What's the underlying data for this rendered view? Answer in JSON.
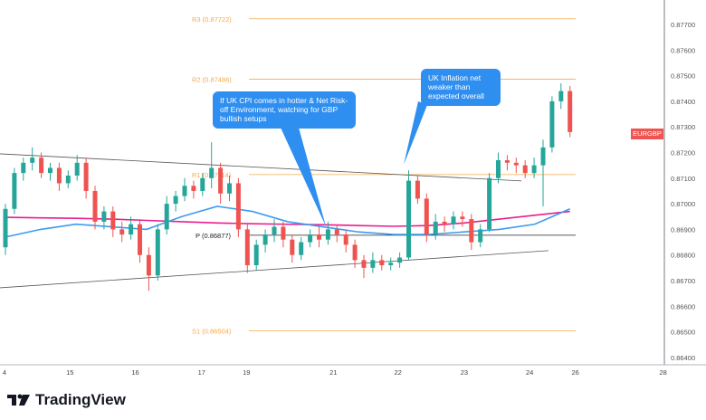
{
  "chart_data": {
    "type": "candlestick",
    "symbol": "EURGBP",
    "ylim": [
      0.864,
      0.8775
    ],
    "y_ticks": [
      "0.87700",
      "0.87600",
      "0.87500",
      "0.87400",
      "0.87300",
      "0.87200",
      "0.87100",
      "0.87000",
      "0.86900",
      "0.86800",
      "0.86700",
      "0.86600",
      "0.86500",
      "0.86400"
    ],
    "x_ticks": [
      {
        "label": "4",
        "i": -0.1
      },
      {
        "label": "15",
        "i": 7.2
      },
      {
        "label": "16",
        "i": 14.5
      },
      {
        "label": "17",
        "i": 21.9
      },
      {
        "label": "19",
        "i": 26.9
      },
      {
        "label": "21",
        "i": 36.6
      },
      {
        "label": "22",
        "i": 43.8
      },
      {
        "label": "23",
        "i": 51.2
      },
      {
        "label": "24",
        "i": 58.5
      },
      {
        "label": "26",
        "i": 63.6
      },
      {
        "label": "28",
        "i": 73.4
      }
    ],
    "candles": [
      [
        0.8683,
        0.87,
        0.868,
        0.8698
      ],
      [
        0.8698,
        0.8714,
        0.8696,
        0.8712
      ],
      [
        0.8712,
        0.8718,
        0.8709,
        0.8716
      ],
      [
        0.8716,
        0.8722,
        0.8713,
        0.8718
      ],
      [
        0.8718,
        0.872,
        0.871,
        0.8712
      ],
      [
        0.8712,
        0.8716,
        0.8709,
        0.8714
      ],
      [
        0.8714,
        0.8716,
        0.8705,
        0.8708
      ],
      [
        0.8708,
        0.8713,
        0.8706,
        0.8711
      ],
      [
        0.8711,
        0.8719,
        0.8709,
        0.8716
      ],
      [
        0.8716,
        0.8718,
        0.8702,
        0.8705
      ],
      [
        0.8705,
        0.8707,
        0.869,
        0.8693
      ],
      [
        0.8693,
        0.8699,
        0.869,
        0.8697
      ],
      [
        0.8697,
        0.8699,
        0.8687,
        0.869
      ],
      [
        0.869,
        0.8693,
        0.8685,
        0.8688
      ],
      [
        0.8688,
        0.8695,
        0.8686,
        0.8692
      ],
      [
        0.8692,
        0.8694,
        0.8677,
        0.868
      ],
      [
        0.868,
        0.8683,
        0.8666,
        0.8672
      ],
      [
        0.8672,
        0.8692,
        0.867,
        0.869
      ],
      [
        0.869,
        0.8703,
        0.8688,
        0.87
      ],
      [
        0.87,
        0.8705,
        0.8697,
        0.8703
      ],
      [
        0.8703,
        0.871,
        0.8701,
        0.8707
      ],
      [
        0.8707,
        0.8709,
        0.8702,
        0.8705
      ],
      [
        0.8705,
        0.8712,
        0.8703,
        0.871
      ],
      [
        0.871,
        0.8724,
        0.8706,
        0.8714
      ],
      [
        0.8714,
        0.8716,
        0.87,
        0.8704
      ],
      [
        0.8704,
        0.8711,
        0.8701,
        0.8708
      ],
      [
        0.8708,
        0.871,
        0.8687,
        0.869
      ],
      [
        0.869,
        0.8692,
        0.8673,
        0.8676
      ],
      [
        0.8676,
        0.8686,
        0.8674,
        0.8684
      ],
      [
        0.8684,
        0.869,
        0.8681,
        0.8688
      ],
      [
        0.8688,
        0.8694,
        0.8685,
        0.8691
      ],
      [
        0.8691,
        0.8693,
        0.8683,
        0.8686
      ],
      [
        0.8686,
        0.8688,
        0.8677,
        0.868
      ],
      [
        0.868,
        0.8687,
        0.8678,
        0.8685
      ],
      [
        0.8685,
        0.869,
        0.8683,
        0.8688
      ],
      [
        0.8688,
        0.8691,
        0.8683,
        0.8686
      ],
      [
        0.8686,
        0.8693,
        0.8684,
        0.869
      ],
      [
        0.869,
        0.8692,
        0.8685,
        0.8688
      ],
      [
        0.8688,
        0.869,
        0.8681,
        0.8684
      ],
      [
        0.8684,
        0.8686,
        0.8675,
        0.8678
      ],
      [
        0.8678,
        0.868,
        0.8671,
        0.8675
      ],
      [
        0.8675,
        0.8681,
        0.8673,
        0.8678
      ],
      [
        0.8678,
        0.868,
        0.8674,
        0.8676
      ],
      [
        0.8676,
        0.8679,
        0.8674,
        0.8677
      ],
      [
        0.8677,
        0.8681,
        0.8675,
        0.8679
      ],
      [
        0.8679,
        0.8713,
        0.8678,
        0.8709
      ],
      [
        0.8709,
        0.8711,
        0.87,
        0.8702
      ],
      [
        0.8702,
        0.8704,
        0.8685,
        0.8688
      ],
      [
        0.8688,
        0.8696,
        0.8686,
        0.8693
      ],
      [
        0.8693,
        0.8695,
        0.8689,
        0.8692
      ],
      [
        0.8692,
        0.8697,
        0.869,
        0.8695
      ],
      [
        0.8695,
        0.8697,
        0.8691,
        0.8694
      ],
      [
        0.8694,
        0.8696,
        0.8682,
        0.8685
      ],
      [
        0.8685,
        0.8692,
        0.8683,
        0.869
      ],
      [
        0.869,
        0.8712,
        0.8689,
        0.871
      ],
      [
        0.871,
        0.872,
        0.8708,
        0.8717
      ],
      [
        0.8717,
        0.8719,
        0.8713,
        0.8716
      ],
      [
        0.8716,
        0.8718,
        0.8712,
        0.8715
      ],
      [
        0.8715,
        0.8717,
        0.871,
        0.8712
      ],
      [
        0.8712,
        0.8718,
        0.871,
        0.8715
      ],
      [
        0.8715,
        0.8725,
        0.8699,
        0.8722
      ],
      [
        0.8722,
        0.8742,
        0.872,
        0.874
      ],
      [
        0.874,
        0.8747,
        0.8737,
        0.8744
      ],
      [
        0.8744,
        0.8746,
        0.8726,
        0.8728
      ]
    ],
    "ma_pink": [
      0.86947,
      0.86945,
      0.86943,
      0.8694,
      0.86935,
      0.8693,
      0.86925,
      0.86922,
      0.8692,
      0.86918,
      0.86915,
      0.86912,
      0.86915,
      0.86925,
      0.8694,
      0.86955,
      0.8697
    ],
    "ma_blue": [
      0.8687,
      0.869,
      0.8692,
      0.8691,
      0.869,
      0.8695,
      0.8699,
      0.8697,
      0.8693,
      0.8691,
      0.8689,
      0.8688,
      0.8688,
      0.8689,
      0.869,
      0.8692,
      0.8698
    ],
    "trendlines": [
      {
        "from": [
          -0.6,
          0.87195
        ],
        "to": [
          57.6,
          0.87089
        ]
      },
      {
        "from": [
          -0.6,
          0.86672
        ],
        "to": [
          60.6,
          0.86817
        ]
      }
    ],
    "pivots": [
      {
        "label": "R3 (0.87722)",
        "value": 0.87722
      },
      {
        "label": "R2 (0.87486)",
        "value": 0.87486
      },
      {
        "label": "R1 (0.87114)",
        "value": 0.87114
      },
      {
        "label": "P (0.86877)",
        "value": 0.86877
      },
      {
        "label": "S1 (0.86504)",
        "value": 0.86504
      }
    ],
    "colors": {
      "up": "#26a69a",
      "down": "#ef5350",
      "pivot": "#f7a94a",
      "ma_pink": "#e91e8c",
      "ma_blue": "#3d9bf0",
      "trend": "#555555"
    }
  },
  "annotations": {
    "callout1": "If UK CPI comes in hotter & Net Risk-off Environment, watching for GBP bullish setups",
    "callout2": "UK Inflation net weaker than expected overall"
  },
  "price_tag": "EURGBP",
  "brand": "TradingView"
}
